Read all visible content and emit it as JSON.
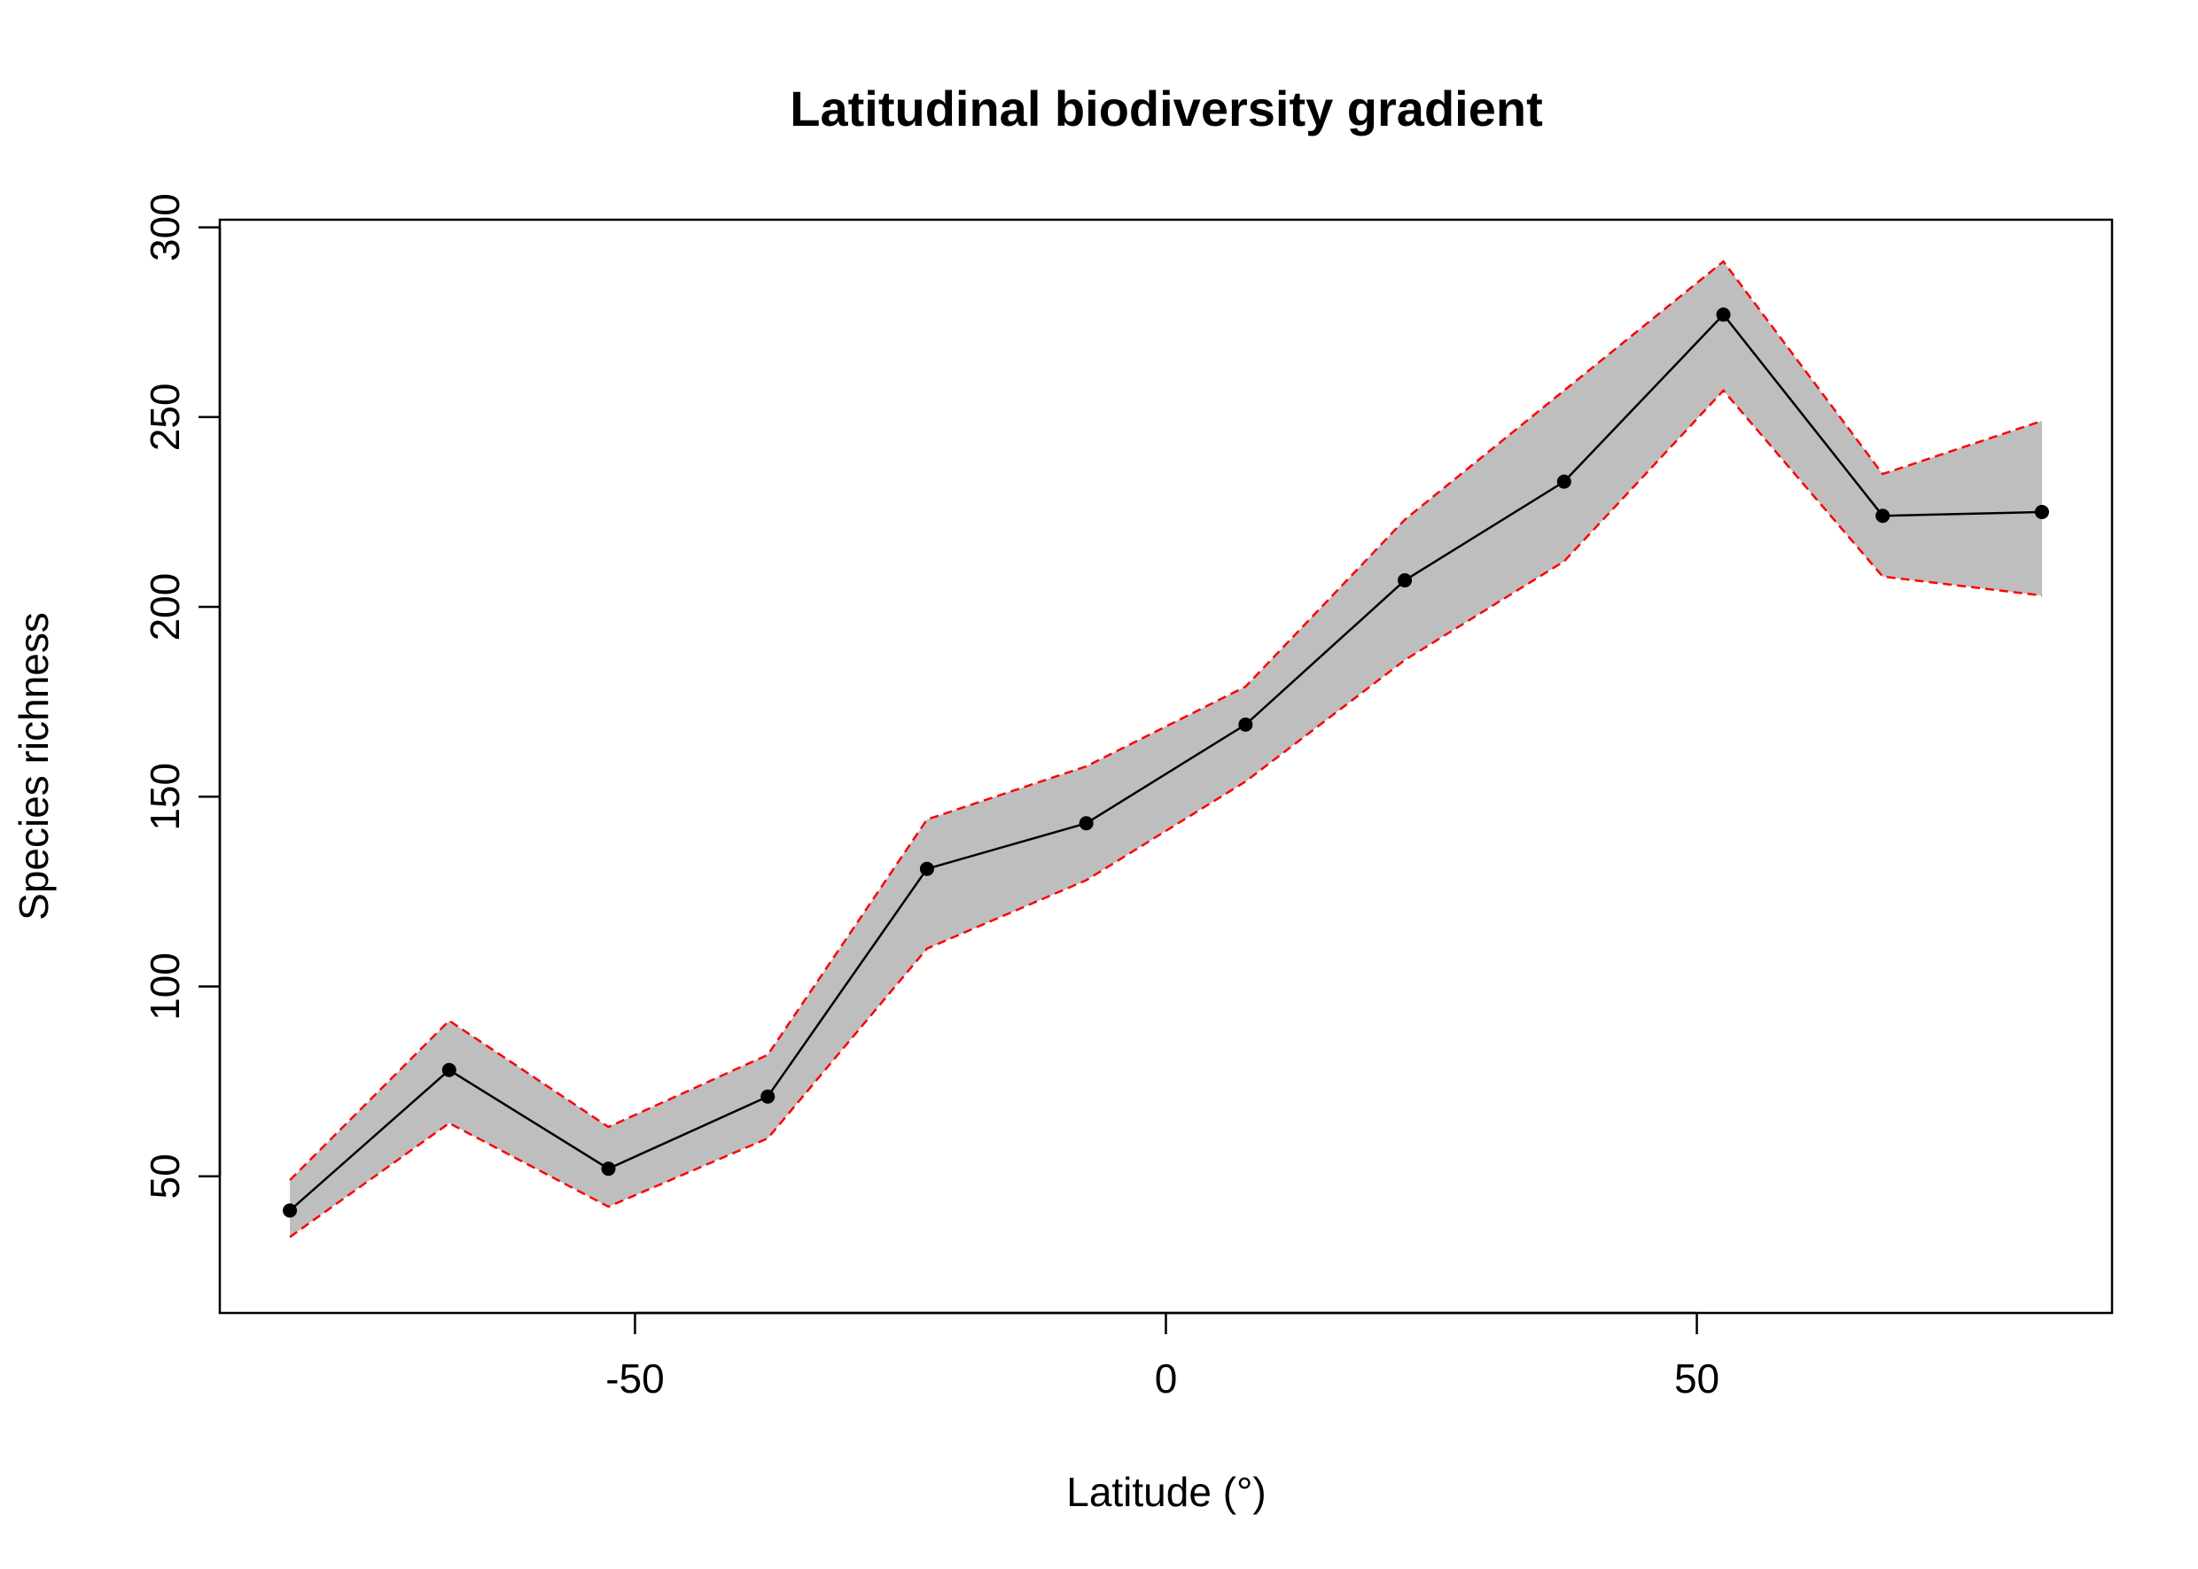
{
  "chart_data": {
    "type": "line",
    "title": "Latitudinal biodiversity gradient",
    "xlabel": "Latitude (°)",
    "ylabel": "Species richness",
    "xlim": [
      -82.5,
      82.5
    ],
    "ylim": [
      25,
      300
    ],
    "xticks": [
      -50,
      0,
      50
    ],
    "yticks": [
      50,
      100,
      150,
      200,
      250,
      300
    ],
    "grid": false,
    "x": [
      -82.5,
      -67.5,
      -52.5,
      -37.5,
      -22.5,
      -7.5,
      7.5,
      22.5,
      37.5,
      52.5,
      67.5,
      82.5
    ],
    "series": [
      {
        "values": [
          41,
          78,
          52,
          71,
          131,
          143,
          169,
          207,
          233,
          277,
          224,
          225
        ]
      }
    ],
    "band": {
      "lower": [
        34,
        64,
        42,
        60,
        110,
        128,
        154,
        186,
        212,
        257,
        208,
        203
      ],
      "upper": [
        49,
        91,
        63,
        82,
        144,
        158,
        179,
        223,
        257,
        291,
        235,
        249
      ]
    },
    "colors": {
      "line": "#000000",
      "points": "#000000",
      "band_fill": "#bebebe",
      "band_edge": "#ff0000"
    }
  }
}
